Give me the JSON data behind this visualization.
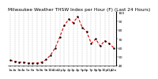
{
  "title": "Milwaukee Weather THSW Index per Hour (F) (Last 24 Hours)",
  "y_values": [
    46,
    45,
    44,
    44,
    43,
    43,
    43,
    44,
    47,
    52,
    60,
    72,
    85,
    92,
    88,
    95,
    83,
    78,
    65,
    70,
    62,
    68,
    65,
    60
  ],
  "x_labels": [
    "1a",
    "2a",
    "3a",
    "4a",
    "5a",
    "6a",
    "7a",
    "8a",
    "9a",
    "10a",
    "11a",
    "12p",
    "1p",
    "2p",
    "3p",
    "4p",
    "5p",
    "6p",
    "7p",
    "8p",
    "9p",
    "10p",
    "11p",
    "12a"
  ],
  "line_color": "#dd0000",
  "marker_color": "#000000",
  "bg_color": "#ffffff",
  "plot_bg_color": "#ffffff",
  "grid_color": "#999999",
  "ylim_min": 40,
  "ylim_max": 100,
  "yticks": [
    40,
    50,
    60,
    70,
    80,
    90,
    100
  ],
  "title_fontsize": 4.2,
  "tick_fontsize": 3.2
}
